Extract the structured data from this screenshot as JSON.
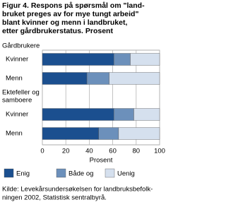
{
  "chart_data": {
    "type": "stacked_barh",
    "title_lines": [
      "Figur 4.  Respons på spørsmål om \"land-",
      "bruket preges av for  mye tungt arbeid\"",
      "blant kvinner og menn i landbruket,",
      "etter gårdbrukerstatus. Prosent"
    ],
    "group_labels": [
      [
        "Gårdbrukere"
      ],
      [
        "Ektefeller og",
        "samboere"
      ]
    ],
    "categories": [
      "Kvinner",
      "Menn",
      "Kvinner",
      "Menn"
    ],
    "series": [
      {
        "name": "Enig",
        "color": "#1b4f8f",
        "values": [
          61,
          38,
          61,
          48
        ]
      },
      {
        "name": "Både og",
        "color": "#6c90bb",
        "values": [
          14,
          19,
          17,
          17
        ]
      },
      {
        "name": "Uenig",
        "color": "#d5e0ee",
        "values": [
          25,
          43,
          22,
          35
        ]
      }
    ],
    "xlim": [
      0,
      100
    ],
    "xticks": [
      0,
      20,
      40,
      60,
      80,
      100
    ],
    "x_label": "Prosent",
    "grid": true,
    "source_lines": [
      "Kilde: Levekårsundersøkelsen for landbruksbefolk-",
      "ningen 2002, Statistisk sentralbyrå."
    ]
  }
}
